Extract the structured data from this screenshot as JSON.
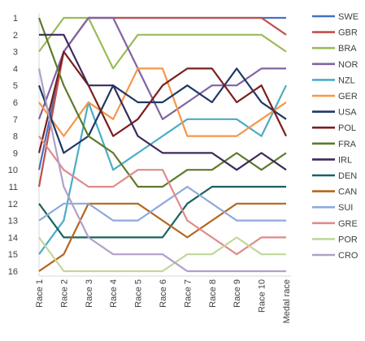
{
  "chart_data": {
    "type": "line",
    "title": "",
    "xlabel": "",
    "ylabel": "",
    "ylim": [
      16,
      1
    ],
    "y_reversed": true,
    "grid": false,
    "legend_position": "right",
    "y_ticks": [
      "1",
      "2",
      "3",
      "4",
      "5",
      "6",
      "7",
      "8",
      "9",
      "10",
      "11",
      "12",
      "13",
      "14",
      "15",
      "16"
    ],
    "categories": [
      "Race 1",
      "Race 2",
      "Race 3",
      "Race 4",
      "Race 5",
      "Race 6",
      "Race 7",
      "Race 8",
      "Race 9",
      "Race 10",
      "Medal race"
    ],
    "series": [
      {
        "name": "SWE",
        "color": "#4472C4",
        "values": [
          10,
          3,
          1,
          1,
          1,
          1,
          1,
          1,
          1,
          1,
          1
        ]
      },
      {
        "name": "GBR",
        "color": "#C0504D",
        "values": [
          11,
          3,
          1,
          1,
          1,
          1,
          1,
          1,
          1,
          1,
          2
        ]
      },
      {
        "name": "BRA",
        "color": "#9BBB59",
        "values": [
          3,
          1,
          1,
          4,
          2,
          2,
          2,
          2,
          2,
          2,
          3
        ]
      },
      {
        "name": "NOR",
        "color": "#8064A2",
        "values": [
          7,
          3,
          1,
          1,
          4,
          7,
          6,
          5,
          5,
          4,
          4
        ]
      },
      {
        "name": "NZL",
        "color": "#4BACC6",
        "values": [
          15,
          13,
          6,
          10,
          9,
          8,
          7,
          7,
          7,
          8,
          5
        ]
      },
      {
        "name": "GER",
        "color": "#F79646",
        "values": [
          6,
          8,
          6,
          7,
          4,
          4,
          8,
          8,
          8,
          7,
          6
        ]
      },
      {
        "name": "USA",
        "color": "#1F3864",
        "values": [
          5,
          9,
          8,
          5,
          6,
          6,
          5,
          6,
          4,
          6,
          7
        ]
      },
      {
        "name": "POL",
        "color": "#7B1E1E",
        "values": [
          9,
          3,
          5,
          8,
          7,
          5,
          4,
          4,
          6,
          5,
          8
        ]
      },
      {
        "name": "FRA",
        "color": "#5E7A2B",
        "values": [
          1,
          5,
          8,
          9,
          11,
          11,
          10,
          10,
          9,
          10,
          9
        ]
      },
      {
        "name": "IRL",
        "color": "#3B2A5C",
        "values": [
          2,
          2,
          5,
          5,
          8,
          9,
          9,
          9,
          10,
          9,
          10
        ]
      },
      {
        "name": "DEN",
        "color": "#17625F",
        "values": [
          12,
          14,
          14,
          14,
          14,
          14,
          12,
          11,
          11,
          11,
          11
        ]
      },
      {
        "name": "CAN",
        "color": "#B5651D",
        "values": [
          16,
          15,
          12,
          12,
          12,
          13,
          14,
          13,
          12,
          12,
          12
        ]
      },
      {
        "name": "SUI",
        "color": "#8EA9DB",
        "values": [
          13,
          12,
          12,
          13,
          13,
          12,
          11,
          12,
          13,
          13,
          13
        ]
      },
      {
        "name": "GRE",
        "color": "#E08A8A",
        "values": [
          8,
          10,
          11,
          11,
          10,
          10,
          13,
          14,
          15,
          14,
          14
        ]
      },
      {
        "name": "POR",
        "color": "#C3D69B",
        "values": [
          14,
          16,
          16,
          16,
          16,
          16,
          15,
          15,
          14,
          15,
          15
        ]
      },
      {
        "name": "CRO",
        "color": "#B1A0C7",
        "values": [
          4,
          11,
          14,
          15,
          15,
          15,
          16,
          16,
          16,
          16,
          16
        ]
      }
    ]
  }
}
